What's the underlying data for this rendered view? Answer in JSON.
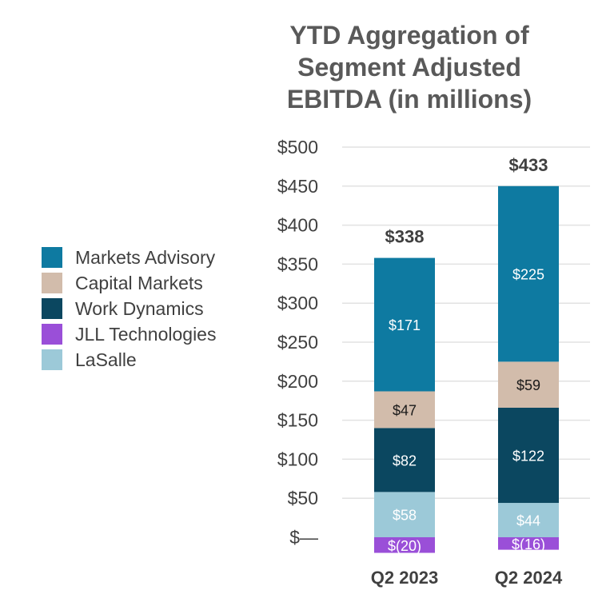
{
  "chart_data": {
    "type": "bar",
    "stacked": true,
    "title_lines": [
      "YTD Aggregation of",
      "Segment Adjusted",
      "EBITDA (in millions)"
    ],
    "categories": [
      "Q2 2023",
      "Q2 2024"
    ],
    "series": [
      {
        "name": "JLL Technologies",
        "color": "#9a4fd8",
        "text_color": "#ffffff",
        "values": [
          -20,
          -16
        ],
        "labels": [
          "$(20)",
          "$(16)"
        ]
      },
      {
        "name": "LaSalle",
        "color": "#9cc9d8",
        "text_color": "#ffffff",
        "values": [
          58,
          44
        ],
        "labels": [
          "$58",
          "$44"
        ]
      },
      {
        "name": "Work Dynamics",
        "color": "#0b4760",
        "text_color": "#ffffff",
        "values": [
          82,
          122
        ],
        "labels": [
          "$82",
          "$122"
        ]
      },
      {
        "name": "Capital Markets",
        "color": "#d2bcab",
        "text_color": "#1a1a1a",
        "values": [
          47,
          59
        ],
        "labels": [
          "$47",
          "$59"
        ]
      },
      {
        "name": "Markets Advisory",
        "color": "#0e7aa1",
        "text_color": "#ffffff",
        "values": [
          171,
          225
        ],
        "labels": [
          "$171",
          "$225"
        ]
      }
    ],
    "legend_order": [
      "Markets Advisory",
      "Capital Markets",
      "Work Dynamics",
      "JLL Technologies",
      "LaSalle"
    ],
    "totals": [
      "$338",
      "$433"
    ],
    "ylim": [
      -20,
      500
    ],
    "y_ticks": [
      0,
      50,
      100,
      150,
      200,
      250,
      300,
      350,
      400,
      450,
      500
    ],
    "y_tick_labels": [
      "$—",
      "$50",
      "$100",
      "$150",
      "$200",
      "$250",
      "$300",
      "$350",
      "$400",
      "$450",
      "$500"
    ],
    "grid": true,
    "legend_position": "left"
  }
}
